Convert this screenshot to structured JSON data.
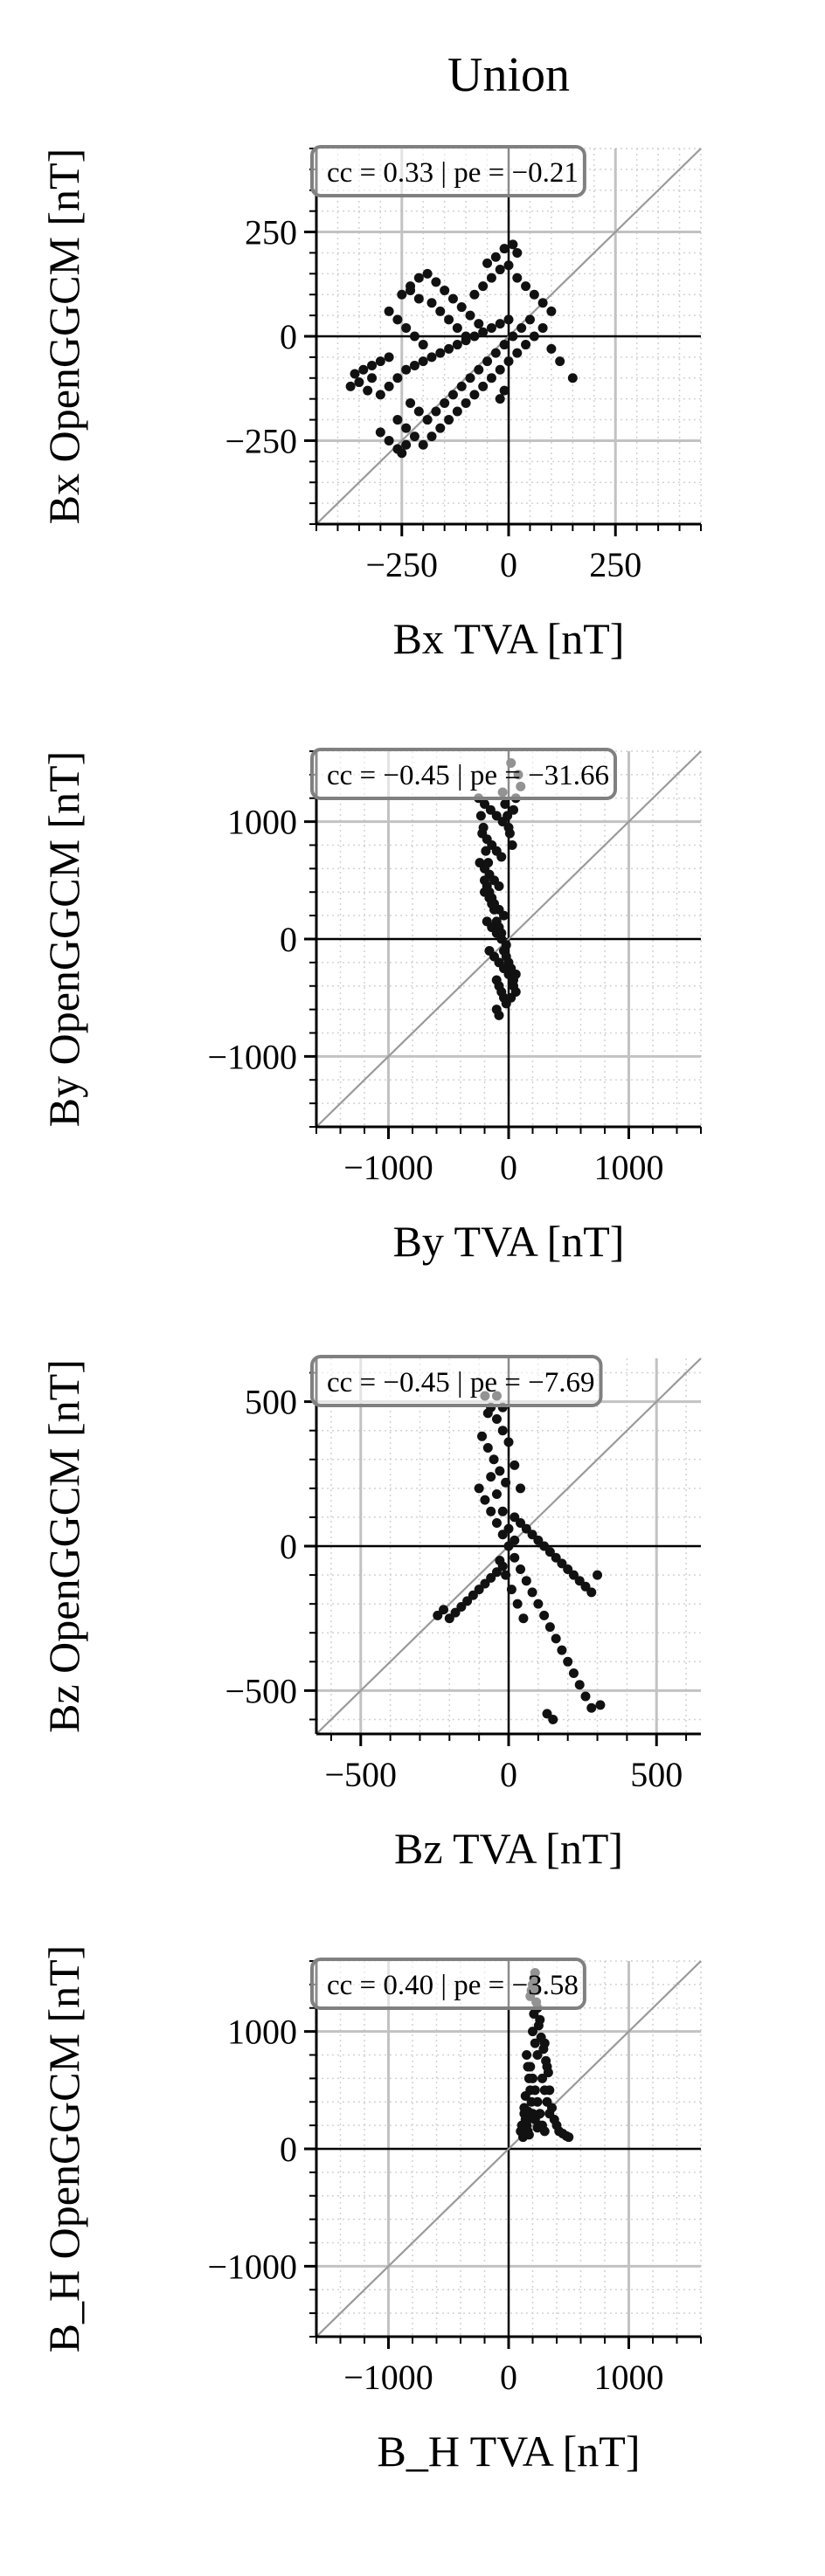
{
  "figure_title": "Union",
  "colors": {
    "points": "#111111",
    "axis_zero": "#000000",
    "major_grid": "#c2c2c2",
    "minor_grid": "#d2d2d2",
    "diagonal": "#9a9a9a",
    "box_edge": "#808080",
    "text": "#000000"
  },
  "chart_data": [
    {
      "type": "scatter",
      "title": "Union",
      "xlabel": "Bx TVA [nT]",
      "ylabel": "Bx OpenGGCM [nT]",
      "xlim": [
        -450,
        450
      ],
      "ylim": [
        -450,
        450
      ],
      "xticks": [
        -250,
        0,
        250
      ],
      "yticks": [
        -250,
        0,
        250
      ],
      "xticklabels": [
        "−250",
        "0",
        "250"
      ],
      "yticklabels": [
        "−250",
        "0",
        "250"
      ],
      "minor_step": 50,
      "annotation": "cc = 0.33 | pe = −0.21",
      "grid": true,
      "diagonal_line": "y = x",
      "points": [
        [
          -320,
          -100
        ],
        [
          -350,
          -110
        ],
        [
          -370,
          -120
        ],
        [
          -330,
          -130
        ],
        [
          -300,
          -140
        ],
        [
          -280,
          -120
        ],
        [
          -260,
          -100
        ],
        [
          -240,
          -80
        ],
        [
          -220,
          -70
        ],
        [
          -200,
          -60
        ],
        [
          -180,
          -50
        ],
        [
          -160,
          -40
        ],
        [
          -140,
          -30
        ],
        [
          -120,
          -20
        ],
        [
          -100,
          -10
        ],
        [
          -80,
          0
        ],
        [
          -60,
          10
        ],
        [
          -40,
          20
        ],
        [
          -20,
          30
        ],
        [
          0,
          40
        ],
        [
          -250,
          100
        ],
        [
          -230,
          120
        ],
        [
          -210,
          140
        ],
        [
          -190,
          150
        ],
        [
          -170,
          130
        ],
        [
          -150,
          110
        ],
        [
          -130,
          90
        ],
        [
          -110,
          70
        ],
        [
          -90,
          50
        ],
        [
          -70,
          30
        ],
        [
          -260,
          -200
        ],
        [
          -240,
          -220
        ],
        [
          -220,
          -240
        ],
        [
          -200,
          -260
        ],
        [
          -180,
          -240
        ],
        [
          -160,
          -220
        ],
        [
          -140,
          -200
        ],
        [
          -120,
          -180
        ],
        [
          -100,
          -160
        ],
        [
          -80,
          -140
        ],
        [
          -60,
          -120
        ],
        [
          -40,
          -100
        ],
        [
          -20,
          -80
        ],
        [
          0,
          -60
        ],
        [
          20,
          -40
        ],
        [
          40,
          -20
        ],
        [
          60,
          0
        ],
        [
          80,
          20
        ],
        [
          100,
          -30
        ],
        [
          120,
          -60
        ],
        [
          -280,
          60
        ],
        [
          -260,
          40
        ],
        [
          -240,
          20
        ],
        [
          -220,
          0
        ],
        [
          -200,
          -20
        ],
        [
          -180,
          80
        ],
        [
          -160,
          60
        ],
        [
          -140,
          40
        ],
        [
          -120,
          20
        ],
        [
          -100,
          0
        ],
        [
          -80,
          100
        ],
        [
          -60,
          120
        ],
        [
          -40,
          140
        ],
        [
          -20,
          160
        ],
        [
          0,
          170
        ],
        [
          20,
          140
        ],
        [
          40,
          120
        ],
        [
          60,
          100
        ],
        [
          80,
          80
        ],
        [
          100,
          60
        ],
        [
          10,
          220
        ],
        [
          20,
          200
        ],
        [
          -10,
          210
        ],
        [
          -30,
          190
        ],
        [
          -50,
          175
        ],
        [
          -230,
          -160
        ],
        [
          -210,
          -180
        ],
        [
          -190,
          -200
        ],
        [
          -170,
          -180
        ],
        [
          -150,
          -160
        ],
        [
          -130,
          -140
        ],
        [
          -110,
          -120
        ],
        [
          -90,
          -100
        ],
        [
          -70,
          -80
        ],
        [
          -50,
          -60
        ],
        [
          -30,
          -40
        ],
        [
          -10,
          -20
        ],
        [
          10,
          0
        ],
        [
          30,
          20
        ],
        [
          50,
          40
        ],
        [
          -360,
          -90
        ],
        [
          -340,
          -80
        ],
        [
          -320,
          -70
        ],
        [
          -300,
          -60
        ],
        [
          -280,
          -50
        ],
        [
          150,
          -100
        ],
        [
          -20,
          -150
        ],
        [
          -10,
          -130
        ],
        [
          -260,
          -270
        ],
        [
          -280,
          -250
        ],
        [
          -300,
          -230
        ],
        [
          -250,
          -280
        ],
        [
          -240,
          -260
        ],
        [
          -230,
          110
        ],
        [
          -210,
          90
        ]
      ]
    },
    {
      "type": "scatter",
      "xlabel": "By TVA [nT]",
      "ylabel": "By OpenGGCM [nT]",
      "xlim": [
        -1600,
        1600
      ],
      "ylim": [
        -1600,
        1600
      ],
      "xticks": [
        -1000,
        0,
        1000
      ],
      "yticks": [
        -1000,
        0,
        1000
      ],
      "xticklabels": [
        "−1000",
        "0",
        "1000"
      ],
      "yticklabels": [
        "−1000",
        "0",
        "1000"
      ],
      "minor_step": 200,
      "annotation": "cc = −0.45 | pe = −31.66",
      "grid": true,
      "diagonal_line": "y = x",
      "points": [
        [
          -200,
          1150
        ],
        [
          -150,
          1100
        ],
        [
          -100,
          1050
        ],
        [
          -50,
          1000
        ],
        [
          0,
          950
        ],
        [
          -220,
          900
        ],
        [
          -180,
          850
        ],
        [
          -140,
          800
        ],
        [
          -100,
          750
        ],
        [
          -60,
          700
        ],
        [
          -240,
          650
        ],
        [
          -200,
          600
        ],
        [
          -160,
          550
        ],
        [
          -120,
          500
        ],
        [
          -80,
          450
        ],
        [
          -200,
          400
        ],
        [
          -160,
          350
        ],
        [
          -120,
          300
        ],
        [
          -80,
          250
        ],
        [
          -40,
          200
        ],
        [
          -180,
          150
        ],
        [
          -140,
          100
        ],
        [
          -100,
          50
        ],
        [
          -60,
          0
        ],
        [
          -20,
          -50
        ],
        [
          -160,
          -100
        ],
        [
          -120,
          -150
        ],
        [
          -80,
          -200
        ],
        [
          -40,
          -250
        ],
        [
          0,
          -300
        ],
        [
          -100,
          -350
        ],
        [
          -80,
          -400
        ],
        [
          -60,
          -450
        ],
        [
          -40,
          -500
        ],
        [
          -20,
          -550
        ],
        [
          -100,
          -600
        ],
        [
          -80,
          -650
        ],
        [
          20,
          -500
        ],
        [
          40,
          -400
        ],
        [
          60,
          -300
        ],
        [
          80,
          1400
        ],
        [
          100,
          1300
        ],
        [
          60,
          1200
        ],
        [
          40,
          1100
        ],
        [
          20,
          1500
        ],
        [
          -250,
          1200
        ],
        [
          -230,
          1050
        ],
        [
          -210,
          950
        ],
        [
          -190,
          750
        ],
        [
          -170,
          650
        ],
        [
          -50,
          1250
        ],
        [
          -30,
          1150
        ],
        [
          -10,
          1050
        ],
        [
          10,
          900
        ],
        [
          30,
          800
        ],
        [
          -200,
          500
        ],
        [
          -180,
          450
        ],
        [
          -160,
          400
        ],
        [
          -140,
          350
        ],
        [
          -120,
          250
        ],
        [
          -100,
          150
        ],
        [
          -80,
          100
        ],
        [
          -60,
          50
        ],
        [
          -40,
          -100
        ],
        [
          -20,
          -150
        ],
        [
          0,
          -200
        ],
        [
          20,
          -250
        ],
        [
          40,
          -350
        ],
        [
          60,
          -450
        ],
        [
          -140,
          300
        ]
      ]
    },
    {
      "type": "scatter",
      "xlabel": "Bz TVA [nT]",
      "ylabel": "Bz OpenGGCM [nT]",
      "xlim": [
        -650,
        650
      ],
      "ylim": [
        -650,
        650
      ],
      "xticks": [
        -500,
        0,
        500
      ],
      "yticks": [
        -500,
        0,
        500
      ],
      "xticklabels": [
        "−500",
        "0",
        "500"
      ],
      "yticklabels": [
        "−500",
        "0",
        "500"
      ],
      "minor_step": 100,
      "annotation": "cc = −0.45 | pe = −7.69",
      "grid": true,
      "diagonal_line": "y = x",
      "points": [
        [
          -80,
          520
        ],
        [
          -60,
          480
        ],
        [
          -40,
          440
        ],
        [
          -20,
          400
        ],
        [
          -70,
          460
        ],
        [
          -90,
          380
        ],
        [
          -70,
          340
        ],
        [
          -50,
          300
        ],
        [
          -30,
          260
        ],
        [
          -10,
          220
        ],
        [
          -100,
          200
        ],
        [
          -80,
          160
        ],
        [
          -60,
          120
        ],
        [
          -40,
          80
        ],
        [
          -20,
          40
        ],
        [
          0,
          0
        ],
        [
          20,
          -40
        ],
        [
          40,
          -80
        ],
        [
          60,
          -120
        ],
        [
          80,
          -160
        ],
        [
          100,
          -200
        ],
        [
          120,
          -240
        ],
        [
          140,
          -280
        ],
        [
          160,
          -320
        ],
        [
          180,
          -360
        ],
        [
          200,
          -400
        ],
        [
          220,
          -440
        ],
        [
          240,
          -480
        ],
        [
          260,
          -520
        ],
        [
          280,
          -560
        ],
        [
          -200,
          -250
        ],
        [
          -180,
          -230
        ],
        [
          -160,
          -210
        ],
        [
          -140,
          -190
        ],
        [
          -120,
          -170
        ],
        [
          -100,
          -150
        ],
        [
          -80,
          -130
        ],
        [
          -60,
          -110
        ],
        [
          -40,
          -90
        ],
        [
          -20,
          -70
        ],
        [
          20,
          100
        ],
        [
          40,
          80
        ],
        [
          60,
          60
        ],
        [
          80,
          40
        ],
        [
          100,
          20
        ],
        [
          120,
          0
        ],
        [
          140,
          -20
        ],
        [
          160,
          -40
        ],
        [
          180,
          -60
        ],
        [
          200,
          -80
        ],
        [
          220,
          -100
        ],
        [
          240,
          -120
        ],
        [
          260,
          -140
        ],
        [
          280,
          -160
        ],
        [
          300,
          -100
        ],
        [
          -40,
          520
        ],
        [
          -20,
          480
        ],
        [
          0,
          360
        ],
        [
          20,
          280
        ],
        [
          40,
          200
        ],
        [
          -60,
          240
        ],
        [
          -40,
          180
        ],
        [
          -20,
          120
        ],
        [
          0,
          60
        ],
        [
          20,
          20
        ],
        [
          -30,
          -50
        ],
        [
          -10,
          -100
        ],
        [
          10,
          -150
        ],
        [
          30,
          -200
        ],
        [
          50,
          -250
        ],
        [
          -220,
          -220
        ],
        [
          -240,
          -240
        ],
        [
          310,
          -550
        ],
        [
          150,
          -600
        ],
        [
          130,
          -580
        ]
      ]
    },
    {
      "type": "scatter",
      "xlabel": "B_H TVA [nT]",
      "ylabel": "B_H OpenGGCM [nT]",
      "xlim": [
        -1600,
        1600
      ],
      "ylim": [
        -1600,
        1600
      ],
      "xticks": [
        -1000,
        0,
        1000
      ],
      "yticks": [
        -1000,
        0,
        1000
      ],
      "xticklabels": [
        "−1000",
        "0",
        "1000"
      ],
      "yticklabels": [
        "−1000",
        "0",
        "1000"
      ],
      "minor_step": 200,
      "annotation": "cc = 0.40 | pe = −3.58",
      "grid": true,
      "diagonal_line": "y = x",
      "points": [
        [
          220,
          1500
        ],
        [
          200,
          1400
        ],
        [
          180,
          1300
        ],
        [
          240,
          1200
        ],
        [
          260,
          1100
        ],
        [
          200,
          1000
        ],
        [
          220,
          900
        ],
        [
          240,
          800
        ],
        [
          180,
          700
        ],
        [
          200,
          600
        ],
        [
          220,
          500
        ],
        [
          240,
          400
        ],
        [
          260,
          300
        ],
        [
          280,
          200
        ],
        [
          300,
          150
        ],
        [
          150,
          800
        ],
        [
          160,
          700
        ],
        [
          170,
          600
        ],
        [
          180,
          500
        ],
        [
          190,
          400
        ],
        [
          130,
          300
        ],
        [
          140,
          250
        ],
        [
          150,
          200
        ],
        [
          160,
          150
        ],
        [
          170,
          120
        ],
        [
          120,
          100
        ],
        [
          100,
          150
        ],
        [
          110,
          200
        ],
        [
          130,
          350
        ],
        [
          140,
          450
        ],
        [
          300,
          900
        ],
        [
          320,
          700
        ],
        [
          340,
          500
        ],
        [
          360,
          350
        ],
        [
          380,
          250
        ],
        [
          400,
          200
        ],
        [
          420,
          150
        ],
        [
          450,
          130
        ],
        [
          480,
          110
        ],
        [
          500,
          100
        ],
        [
          250,
          1050
        ],
        [
          270,
          950
        ],
        [
          290,
          850
        ],
        [
          310,
          750
        ],
        [
          330,
          650
        ],
        [
          210,
          1150
        ],
        [
          230,
          1250
        ],
        [
          190,
          1350
        ],
        [
          210,
          1450
        ],
        [
          230,
          1350
        ],
        [
          280,
          600
        ],
        [
          300,
          500
        ],
        [
          320,
          400
        ],
        [
          340,
          300
        ],
        [
          260,
          200
        ],
        [
          200,
          300
        ],
        [
          220,
          250
        ],
        [
          240,
          180
        ],
        [
          180,
          260
        ],
        [
          160,
          320
        ]
      ]
    }
  ]
}
